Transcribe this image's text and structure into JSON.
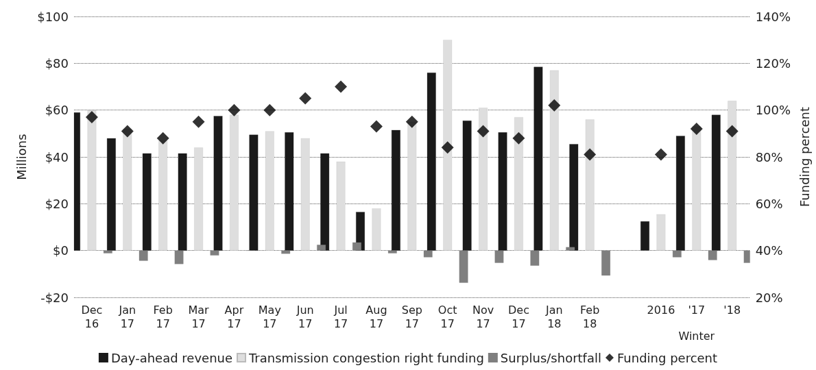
{
  "chart_data": {
    "type": "bar",
    "ylabel": "Millions",
    "y2label": "Funding percent",
    "categories": [
      "Dec\n16",
      "Jan\n17",
      "Feb\n17",
      "Mar\n17",
      "Apr\n17",
      "May\n17",
      "Jun\n17",
      "Jul\n17",
      "Aug\n17",
      "Sep\n17",
      "Oct\n17",
      "Nov\n17",
      "Dec\n17",
      "Jan\n18",
      "Feb\n18",
      null,
      "2016",
      "'17",
      "'18"
    ],
    "series": [
      {
        "name": "Day-ahead revenue",
        "color": "#1a1a1a",
        "values": [
          59,
          48,
          41.5,
          41.5,
          57.5,
          49.5,
          50.5,
          41.5,
          16.5,
          51.5,
          76,
          55.5,
          50.5,
          78.5,
          45.5,
          null,
          12.5,
          49,
          58
        ]
      },
      {
        "name": "Transmission congestion right funding",
        "color": "#dedede",
        "values": [
          60,
          52,
          47,
          44,
          58,
          51,
          48,
          38,
          18,
          55,
          90,
          61,
          57,
          77,
          56,
          null,
          15.5,
          53,
          64
        ]
      },
      {
        "name": "Surplus/shortfall",
        "color": "#7f7f7f",
        "values": [
          -1.2,
          -4.4,
          -5.8,
          -2.1,
          0,
          -1.4,
          2.5,
          3.5,
          -1.2,
          -2.9,
          -13.8,
          -5.3,
          -6.5,
          1.5,
          -10.7,
          null,
          -2.9,
          -4.1,
          -5.3
        ]
      },
      {
        "name": "Funding percent",
        "type": "scatter",
        "axis": "y2",
        "color": "#000000",
        "values": [
          97,
          91,
          88,
          95,
          100,
          100,
          105,
          110,
          93,
          95,
          84,
          91,
          88,
          102,
          81,
          null,
          81,
          92,
          91
        ]
      }
    ],
    "ylim": [
      -20,
      100
    ],
    "yticks": [
      {
        "value": -20,
        "label": "-$20"
      },
      {
        "value": 0,
        "label": "$0"
      },
      {
        "value": 20,
        "label": "$20"
      },
      {
        "value": 40,
        "label": "$40"
      },
      {
        "value": 60,
        "label": "$60"
      },
      {
        "value": 80,
        "label": "$80"
      },
      {
        "value": 100,
        "label": "$100"
      }
    ],
    "y2lim": [
      20,
      140
    ],
    "y2ticks": [
      {
        "value": 20,
        "label": "20%"
      },
      {
        "value": 40,
        "label": "40%"
      },
      {
        "value": 60,
        "label": "60%"
      },
      {
        "value": 80,
        "label": "80%"
      },
      {
        "value": 100,
        "label": "100%"
      },
      {
        "value": 120,
        "label": "120%"
      },
      {
        "value": 140,
        "label": "140%"
      }
    ],
    "annotations": [
      "Winter"
    ],
    "grid": "y",
    "legend": "bottom",
    "marker": "diamond"
  }
}
